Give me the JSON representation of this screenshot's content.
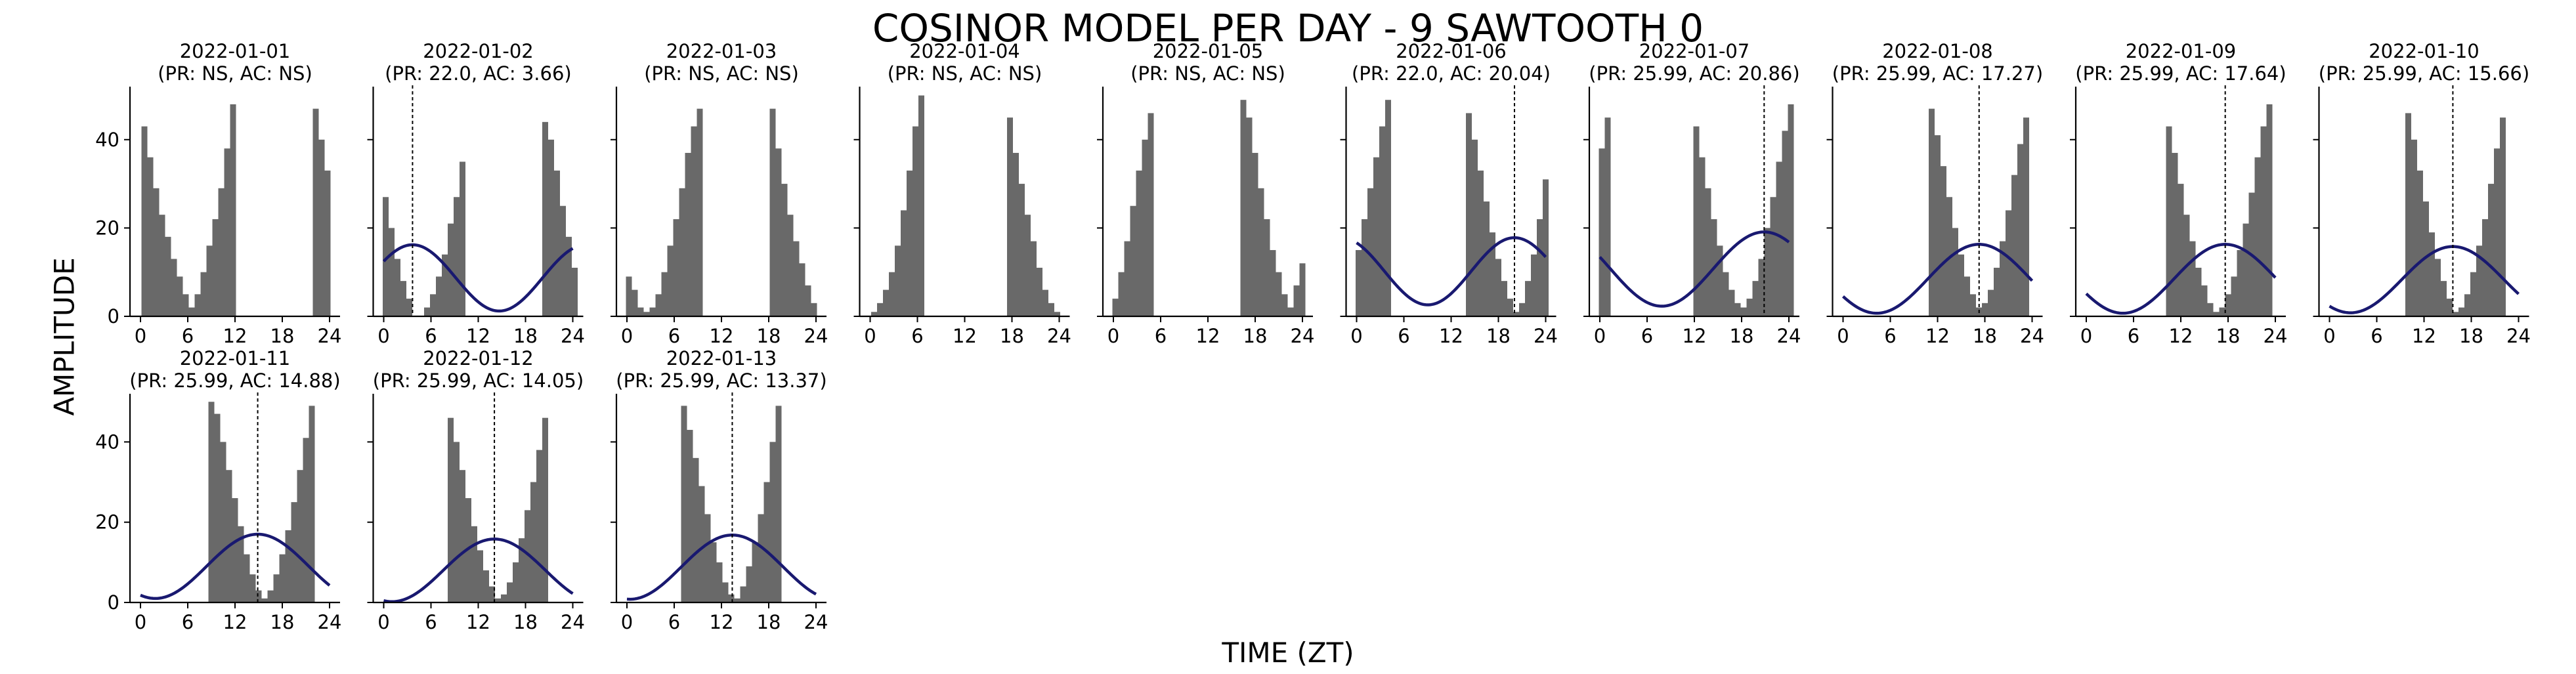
{
  "title": "COSINOR MODEL PER DAY - 9 SAWTOOTH 0",
  "xlabel": "TIME (ZT)",
  "ylabel": "AMPLITUDE",
  "colors": {
    "bars": "#696969",
    "curve": "#191970",
    "axis": "#000000",
    "acrophase_line": "#000000"
  },
  "chart_data": [
    {
      "type": "bar",
      "title": "2022-01-01",
      "subtitle": "(PR: NS, AC: NS)",
      "xlim": [
        0,
        24
      ],
      "ylim": [
        0,
        52
      ],
      "xticks": [
        0,
        6,
        12,
        18,
        24
      ],
      "yticks": [
        0,
        20,
        40
      ],
      "bar_width": 0.75,
      "bars": [
        [
          0.5,
          43
        ],
        [
          1.25,
          36
        ],
        [
          2,
          29
        ],
        [
          2.75,
          23
        ],
        [
          3.5,
          18
        ],
        [
          4.25,
          13
        ],
        [
          5,
          9
        ],
        [
          5.75,
          5
        ],
        [
          6.5,
          2
        ],
        [
          7.25,
          5
        ],
        [
          8,
          10
        ],
        [
          8.75,
          16
        ],
        [
          9.5,
          22
        ],
        [
          10.25,
          29
        ],
        [
          11,
          38
        ],
        [
          11.75,
          48
        ],
        [
          22.25,
          47
        ],
        [
          23,
          40
        ],
        [
          23.75,
          33
        ]
      ],
      "cosinor": null
    },
    {
      "type": "bar",
      "title": "2022-01-02",
      "subtitle": "(PR: 22.0, AC: 3.66)",
      "xlim": [
        0,
        24
      ],
      "ylim": [
        0,
        52
      ],
      "xticks": [
        0,
        6,
        12,
        18,
        24
      ],
      "yticks": [
        0,
        20,
        40
      ],
      "bar_width": 0.75,
      "bars": [
        [
          0.25,
          27
        ],
        [
          1,
          20
        ],
        [
          1.75,
          13
        ],
        [
          2.5,
          8
        ],
        [
          3.25,
          4
        ],
        [
          5.5,
          2
        ],
        [
          6.25,
          5
        ],
        [
          7,
          9
        ],
        [
          7.75,
          14
        ],
        [
          8.5,
          21
        ],
        [
          9.25,
          27
        ],
        [
          10,
          35
        ],
        [
          20.5,
          44
        ],
        [
          21.25,
          40
        ],
        [
          22,
          33
        ],
        [
          22.75,
          25
        ],
        [
          23.5,
          18
        ],
        [
          24.25,
          11
        ]
      ],
      "cosinor": {
        "mesor": 8.7,
        "amplitude": 7.5,
        "period": 22.0,
        "acrophase": 3.66
      }
    },
    {
      "type": "bar",
      "title": "2022-01-03",
      "subtitle": "(PR: NS, AC: NS)",
      "xlim": [
        0,
        24
      ],
      "ylim": [
        0,
        52
      ],
      "xticks": [
        0,
        6,
        12,
        18,
        24
      ],
      "yticks": [
        0,
        20,
        40
      ],
      "bar_width": 0.75,
      "bars": [
        [
          0.25,
          9
        ],
        [
          1,
          6
        ],
        [
          1.75,
          2
        ],
        [
          2.5,
          1
        ],
        [
          3.25,
          2
        ],
        [
          4,
          5
        ],
        [
          4.75,
          10
        ],
        [
          5.5,
          16
        ],
        [
          6.25,
          22
        ],
        [
          7,
          29
        ],
        [
          7.75,
          37
        ],
        [
          8.5,
          43
        ],
        [
          9.25,
          47
        ],
        [
          18.5,
          47
        ],
        [
          19.25,
          38
        ],
        [
          20,
          30
        ],
        [
          20.75,
          23
        ],
        [
          21.5,
          17
        ],
        [
          22.25,
          12
        ],
        [
          23,
          7
        ],
        [
          23.75,
          3
        ]
      ],
      "cosinor": null
    },
    {
      "type": "bar",
      "title": "2022-01-04",
      "subtitle": "(PR: NS, AC: NS)",
      "xlim": [
        0,
        24
      ],
      "ylim": [
        0,
        52
      ],
      "xticks": [
        0,
        6,
        12,
        18,
        24
      ],
      "yticks": [
        0,
        20,
        40
      ],
      "bar_width": 0.75,
      "bars": [
        [
          0.5,
          1
        ],
        [
          1.25,
          3
        ],
        [
          2,
          6
        ],
        [
          2.75,
          10
        ],
        [
          3.5,
          16
        ],
        [
          4.25,
          24
        ],
        [
          5,
          33
        ],
        [
          5.75,
          43
        ],
        [
          6.5,
          50
        ],
        [
          17.75,
          45
        ],
        [
          18.5,
          37
        ],
        [
          19.25,
          30
        ],
        [
          20,
          23
        ],
        [
          20.75,
          17
        ],
        [
          21.5,
          11
        ],
        [
          22.25,
          6
        ],
        [
          23,
          3
        ],
        [
          23.75,
          1
        ]
      ],
      "cosinor": null
    },
    {
      "type": "bar",
      "title": "2022-01-05",
      "subtitle": "(PR: NS, AC: NS)",
      "xlim": [
        0,
        24
      ],
      "ylim": [
        0,
        52
      ],
      "xticks": [
        0,
        6,
        12,
        18,
        24
      ],
      "yticks": [
        0,
        20,
        40
      ],
      "bar_width": 0.75,
      "bars": [
        [
          0.25,
          4
        ],
        [
          1,
          10
        ],
        [
          1.75,
          17
        ],
        [
          2.5,
          25
        ],
        [
          3.25,
          33
        ],
        [
          4,
          40
        ],
        [
          4.75,
          46
        ],
        [
          16.5,
          49
        ],
        [
          17.25,
          45
        ],
        [
          18,
          37
        ],
        [
          18.75,
          29
        ],
        [
          19.5,
          22
        ],
        [
          20.25,
          15
        ],
        [
          21,
          10
        ],
        [
          21.75,
          5
        ],
        [
          22.5,
          2
        ],
        [
          23.25,
          7
        ],
        [
          24,
          12
        ]
      ],
      "cosinor": null
    },
    {
      "type": "bar",
      "title": "2022-01-06",
      "subtitle": "(PR: 22.0, AC: 20.04)",
      "xlim": [
        0,
        24
      ],
      "ylim": [
        0,
        52
      ],
      "xticks": [
        0,
        6,
        12,
        18,
        24
      ],
      "yticks": [
        0,
        20,
        40
      ],
      "bar_width": 0.75,
      "bars": [
        [
          0.25,
          15
        ],
        [
          1,
          22
        ],
        [
          1.75,
          29
        ],
        [
          2.5,
          36
        ],
        [
          3.25,
          43
        ],
        [
          4,
          49
        ],
        [
          14.25,
          46
        ],
        [
          15,
          40
        ],
        [
          15.75,
          33
        ],
        [
          16.5,
          26
        ],
        [
          17.25,
          19
        ],
        [
          18,
          13
        ],
        [
          18.75,
          8
        ],
        [
          19.5,
          4
        ],
        [
          20.25,
          1
        ],
        [
          21,
          3
        ],
        [
          21.75,
          8
        ],
        [
          22.5,
          14
        ],
        [
          23.25,
          22
        ],
        [
          24,
          31
        ]
      ],
      "cosinor": {
        "mesor": 10.2,
        "amplitude": 7.6,
        "period": 22.0,
        "acrophase": 20.04
      }
    },
    {
      "type": "bar",
      "title": "2022-01-07",
      "subtitle": "(PR: 25.99, AC: 20.86)",
      "xlim": [
        0,
        24
      ],
      "ylim": [
        0,
        52
      ],
      "xticks": [
        0,
        6,
        12,
        18,
        24
      ],
      "yticks": [
        0,
        20,
        40
      ],
      "bar_width": 0.75,
      "bars": [
        [
          0.25,
          38
        ],
        [
          1,
          45
        ],
        [
          12.25,
          43
        ],
        [
          13,
          36
        ],
        [
          13.75,
          29
        ],
        [
          14.5,
          22
        ],
        [
          15.25,
          16
        ],
        [
          16,
          10
        ],
        [
          16.75,
          6
        ],
        [
          17.5,
          3
        ],
        [
          18.25,
          2
        ],
        [
          19,
          4
        ],
        [
          19.75,
          8
        ],
        [
          20.5,
          13
        ],
        [
          21.25,
          20
        ],
        [
          22,
          27
        ],
        [
          22.75,
          35
        ],
        [
          23.5,
          42
        ],
        [
          24.25,
          48
        ]
      ],
      "cosinor": {
        "mesor": 10.7,
        "amplitude": 8.4,
        "period": 25.99,
        "acrophase": 20.86
      }
    },
    {
      "type": "bar",
      "title": "2022-01-08",
      "subtitle": "(PR: 25.99, AC: 17.27)",
      "xlim": [
        0,
        24
      ],
      "ylim": [
        0,
        52
      ],
      "xticks": [
        0,
        6,
        12,
        18,
        24
      ],
      "yticks": [
        0,
        20,
        40
      ],
      "bar_width": 0.75,
      "bars": [
        [
          11.25,
          47
        ],
        [
          12,
          41
        ],
        [
          12.75,
          34
        ],
        [
          13.5,
          27
        ],
        [
          14.25,
          20
        ],
        [
          15,
          14
        ],
        [
          15.75,
          9
        ],
        [
          16.5,
          5
        ],
        [
          17.25,
          2
        ],
        [
          18,
          3
        ],
        [
          18.75,
          6
        ],
        [
          19.5,
          11
        ],
        [
          20.25,
          17
        ],
        [
          21,
          24
        ],
        [
          21.75,
          32
        ],
        [
          22.5,
          39
        ],
        [
          23.25,
          45
        ]
      ],
      "cosinor": {
        "mesor": 8.5,
        "amplitude": 7.8,
        "period": 25.99,
        "acrophase": 17.27
      }
    },
    {
      "type": "bar",
      "title": "2022-01-09",
      "subtitle": "(PR: 25.99, AC: 17.64)",
      "xlim": [
        0,
        24
      ],
      "ylim": [
        0,
        52
      ],
      "xticks": [
        0,
        6,
        12,
        18,
        24
      ],
      "yticks": [
        0,
        20,
        40
      ],
      "bar_width": 0.75,
      "bars": [
        [
          10.5,
          43
        ],
        [
          11.25,
          37
        ],
        [
          12,
          30
        ],
        [
          12.75,
          23
        ],
        [
          13.5,
          17
        ],
        [
          14.25,
          11
        ],
        [
          15,
          7
        ],
        [
          15.75,
          3
        ],
        [
          16.5,
          1
        ],
        [
          17.25,
          2
        ],
        [
          18,
          5
        ],
        [
          18.75,
          9
        ],
        [
          19.5,
          15
        ],
        [
          20.25,
          21
        ],
        [
          21,
          28
        ],
        [
          21.75,
          36
        ],
        [
          22.5,
          43
        ],
        [
          23.25,
          48
        ]
      ],
      "cosinor": {
        "mesor": 8.5,
        "amplitude": 7.8,
        "period": 25.99,
        "acrophase": 17.64
      }
    },
    {
      "type": "bar",
      "title": "2022-01-10",
      "subtitle": "(PR: 25.99, AC: 15.66)",
      "xlim": [
        0,
        24
      ],
      "ylim": [
        0,
        52
      ],
      "xticks": [
        0,
        6,
        12,
        18,
        24
      ],
      "yticks": [
        0,
        20,
        40
      ],
      "bar_width": 0.75,
      "bars": [
        [
          10,
          46
        ],
        [
          10.75,
          40
        ],
        [
          11.5,
          33
        ],
        [
          12.25,
          26
        ],
        [
          13,
          19
        ],
        [
          13.75,
          13
        ],
        [
          14.5,
          8
        ],
        [
          15.25,
          4
        ],
        [
          16,
          1
        ],
        [
          16.75,
          2
        ],
        [
          17.5,
          5
        ],
        [
          18.25,
          10
        ],
        [
          19,
          16
        ],
        [
          19.75,
          22
        ],
        [
          20.5,
          30
        ],
        [
          21.25,
          38
        ],
        [
          22,
          45
        ]
      ],
      "cosinor": {
        "mesor": 8.3,
        "amplitude": 7.5,
        "period": 25.99,
        "acrophase": 15.66
      }
    },
    {
      "type": "bar",
      "title": "2022-01-11",
      "subtitle": "(PR: 25.99, AC: 14.88)",
      "xlim": [
        0,
        24
      ],
      "ylim": [
        0,
        52
      ],
      "xticks": [
        0,
        6,
        12,
        18,
        24
      ],
      "yticks": [
        0,
        20,
        40
      ],
      "bar_width": 0.75,
      "bars": [
        [
          9,
          50
        ],
        [
          9.75,
          47
        ],
        [
          10.5,
          40
        ],
        [
          11.25,
          33
        ],
        [
          12,
          26
        ],
        [
          12.75,
          19
        ],
        [
          13.5,
          12
        ],
        [
          14.25,
          7
        ],
        [
          15,
          3
        ],
        [
          15.75,
          1
        ],
        [
          16.5,
          3
        ],
        [
          17.25,
          7
        ],
        [
          18,
          12
        ],
        [
          18.75,
          18
        ],
        [
          19.5,
          25
        ],
        [
          20.25,
          33
        ],
        [
          21,
          41
        ],
        [
          21.75,
          49
        ]
      ],
      "cosinor": {
        "mesor": 9.0,
        "amplitude": 8.0,
        "period": 25.99,
        "acrophase": 14.88
      }
    },
    {
      "type": "bar",
      "title": "2022-01-12",
      "subtitle": "(PR: 25.99, AC: 14.05)",
      "xlim": [
        0,
        24
      ],
      "ylim": [
        0,
        52
      ],
      "xticks": [
        0,
        6,
        12,
        18,
        24
      ],
      "yticks": [
        0,
        20,
        40
      ],
      "bar_width": 0.75,
      "bars": [
        [
          8.5,
          46
        ],
        [
          9.25,
          40
        ],
        [
          10,
          33
        ],
        [
          10.75,
          26
        ],
        [
          11.5,
          19
        ],
        [
          12.25,
          13
        ],
        [
          13,
          8
        ],
        [
          13.75,
          4
        ],
        [
          14.5,
          1
        ],
        [
          15.25,
          2
        ],
        [
          16,
          5
        ],
        [
          16.75,
          10
        ],
        [
          17.5,
          16
        ],
        [
          18.25,
          23
        ],
        [
          19,
          30
        ],
        [
          19.75,
          38
        ],
        [
          20.5,
          46
        ]
      ],
      "cosinor": {
        "mesor": 8.0,
        "amplitude": 7.8,
        "period": 25.99,
        "acrophase": 14.05
      }
    },
    {
      "type": "bar",
      "title": "2022-01-13",
      "subtitle": "(PR: 25.99, AC: 13.37)",
      "xlim": [
        0,
        24
      ],
      "ylim": [
        0,
        52
      ],
      "xticks": [
        0,
        6,
        12,
        18,
        24
      ],
      "yticks": [
        0,
        20,
        40
      ],
      "bar_width": 0.75,
      "bars": [
        [
          7.25,
          49
        ],
        [
          8,
          43
        ],
        [
          8.75,
          36
        ],
        [
          9.5,
          29
        ],
        [
          10.25,
          22
        ],
        [
          11,
          15
        ],
        [
          11.75,
          10
        ],
        [
          12.5,
          5
        ],
        [
          13.25,
          2
        ],
        [
          14,
          1
        ],
        [
          14.75,
          4
        ],
        [
          15.5,
          9
        ],
        [
          16.25,
          15
        ],
        [
          17,
          22
        ],
        [
          17.75,
          30
        ],
        [
          18.5,
          40
        ],
        [
          19.25,
          49
        ]
      ],
      "cosinor": {
        "mesor": 8.8,
        "amplitude": 8.0,
        "period": 25.99,
        "acrophase": 13.37
      }
    }
  ]
}
